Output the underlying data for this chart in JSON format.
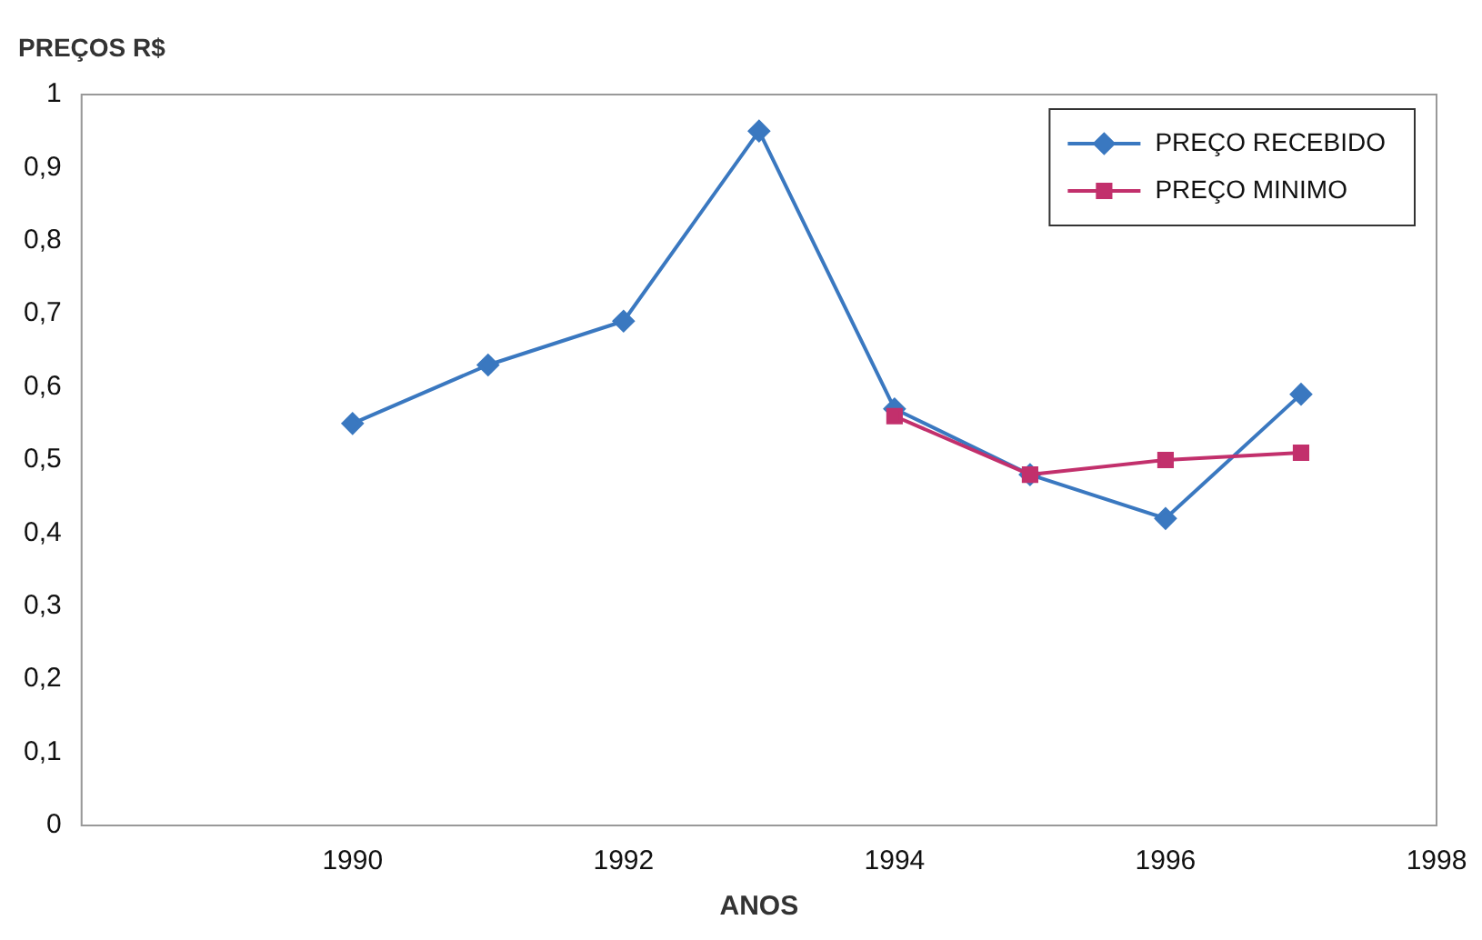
{
  "chart_data": {
    "type": "line",
    "ylabel": "PREÇOS R$",
    "xlabel": "ANOS",
    "series": [
      {
        "name": "PREÇO RECEBIDO",
        "color": "#3a78c0",
        "marker": "diamond",
        "x": [
          1990,
          1991,
          1992,
          1993,
          1994,
          1995,
          1996,
          1997
        ],
        "values": [
          0.55,
          0.63,
          0.69,
          0.95,
          0.57,
          0.48,
          0.42,
          0.59
        ]
      },
      {
        "name": "PREÇO MINIMO",
        "color": "#c2306c",
        "marker": "square",
        "x": [
          1994,
          1995,
          1996,
          1997
        ],
        "values": [
          0.56,
          0.48,
          0.5,
          0.51
        ]
      }
    ],
    "xlim": [
      1988,
      1998
    ],
    "xticks": [
      1990,
      1992,
      1994,
      1996,
      1998
    ],
    "ylim": [
      0,
      1
    ],
    "yticks": [
      0,
      {
        "value": 0.1,
        "label": "0,1"
      },
      {
        "value": 0.2,
        "label": "0,2"
      },
      {
        "value": 0.3,
        "label": "0,3"
      },
      {
        "value": 0.4,
        "label": "0,4"
      },
      {
        "value": 0.5,
        "label": "0,5"
      },
      {
        "value": 0.6,
        "label": "0,6"
      },
      {
        "value": 0.7,
        "label": "0,7"
      },
      {
        "value": 0.8,
        "label": "0,8"
      },
      {
        "value": 0.9,
        "label": "0,9"
      },
      1
    ],
    "legend": "top right",
    "grid": false,
    "line_style": "solid"
  }
}
